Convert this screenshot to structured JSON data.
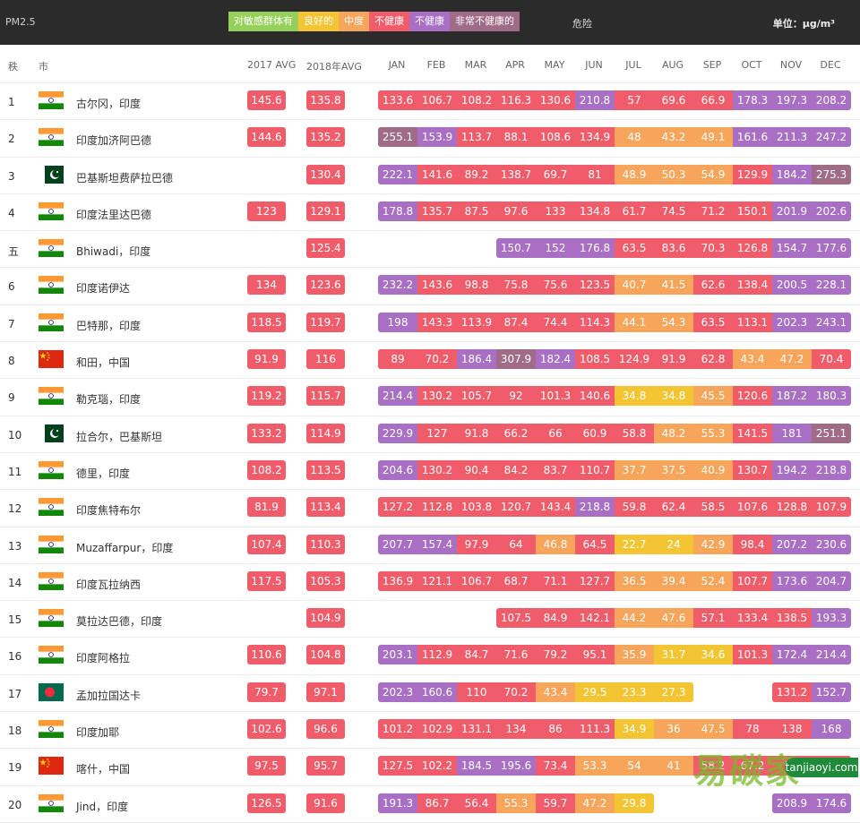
{
  "topbar": {
    "metric": "PM2.5",
    "legend": [
      {
        "label": "对敏感群体有",
        "color": "#95d05a"
      },
      {
        "label": "良好的",
        "color": "#f4c532"
      },
      {
        "label": "中度",
        "color": "#f7a55a"
      },
      {
        "label": "不健康",
        "color": "#f05c6a"
      },
      {
        "label": "不健康",
        "color": "#a86fc4"
      },
      {
        "label": "非常不健康的",
        "color": "#9f6b86"
      }
    ],
    "danger": "危险",
    "unit": "单位：μg/m³"
  },
  "header": {
    "rank": "秩",
    "city": "市",
    "avg2017": "2017 AVG",
    "avg2018": "2018年AVG",
    "months": [
      "JAN",
      "FEB",
      "MAR",
      "APR",
      "MAY",
      "JUN",
      "JUL",
      "AUG",
      "SEP",
      "OCT",
      "NOV",
      "DEC"
    ]
  },
  "colors": {
    "good": "#95d05a",
    "moderate": "#f4c532",
    "sensitive": "#f7a55a",
    "unhealthy": "#f05c6a",
    "very_unhealthy": "#a86fc4",
    "hazardous": "#9f6b86"
  },
  "rows": [
    {
      "rank": "1",
      "country": "IN",
      "city": "古尔冈，印度",
      "a17": "145.6",
      "a18": "135.8",
      "m": [
        "133.6",
        "106.7",
        "108.2",
        "116.3",
        "130.6",
        "210.8",
        "57",
        "69.6",
        "66.9",
        "178.3",
        "197.3",
        "208.2"
      ]
    },
    {
      "rank": "2",
      "country": "IN",
      "city": "印度加济阿巴德",
      "a17": "144.6",
      "a18": "135.2",
      "m": [
        "255.1",
        "153.9",
        "113.7",
        "88.1",
        "108.6",
        "134.9",
        "48",
        "43.2",
        "49.1",
        "161.6",
        "211.3",
        "247.2"
      ]
    },
    {
      "rank": "3",
      "country": "PK",
      "city": "巴基斯坦费萨拉巴德",
      "a17": "",
      "a18": "130.4",
      "m": [
        "222.1",
        "141.6",
        "89.2",
        "138.7",
        "69.7",
        "81",
        "48.9",
        "50.3",
        "54.9",
        "129.9",
        "184.2",
        "275.3"
      ]
    },
    {
      "rank": "4",
      "country": "IN",
      "city": "印度法里达巴德",
      "a17": "123",
      "a18": "129.1",
      "m": [
        "178.8",
        "135.7",
        "87.5",
        "97.6",
        "133",
        "134.8",
        "61.7",
        "74.5",
        "71.2",
        "150.1",
        "201.9",
        "202.6"
      ]
    },
    {
      "rank": "五",
      "country": "IN",
      "city": "Bhiwadi，印度",
      "a17": "",
      "a18": "125.4",
      "m": [
        "",
        "",
        "",
        "150.7",
        "152",
        "176.8",
        "63.5",
        "83.6",
        "70.3",
        "126.8",
        "154.7",
        "177.6"
      ]
    },
    {
      "rank": "6",
      "country": "IN",
      "city": "印度诺伊达",
      "a17": "134",
      "a18": "123.6",
      "m": [
        "232.2",
        "143.6",
        "98.8",
        "75.8",
        "75.6",
        "123.5",
        "40.7",
        "41.5",
        "62.6",
        "138.4",
        "200.5",
        "228.1"
      ]
    },
    {
      "rank": "7",
      "country": "IN",
      "city": "巴特那，印度",
      "a17": "118.5",
      "a18": "119.7",
      "m": [
        "198",
        "143.3",
        "113.9",
        "87.4",
        "74.4",
        "114.3",
        "44.1",
        "54.3",
        "63.5",
        "113.1",
        "202.3",
        "243.1"
      ]
    },
    {
      "rank": "8",
      "country": "CN",
      "city": "和田，中国",
      "a17": "91.9",
      "a18": "116",
      "m": [
        "89",
        "70.2",
        "186.4",
        "307.9",
        "182.4",
        "108.5",
        "124.9",
        "91.9",
        "62.8",
        "43.4",
        "47.2",
        "70.4"
      ]
    },
    {
      "rank": "9",
      "country": "IN",
      "city": "勒克瑙，印度",
      "a17": "119.2",
      "a18": "115.7",
      "m": [
        "214.4",
        "130.2",
        "105.7",
        "92",
        "101.3",
        "140.6",
        "34.8",
        "34.8",
        "45.5",
        "120.6",
        "187.2",
        "180.3"
      ]
    },
    {
      "rank": "10",
      "country": "PK",
      "city": "拉合尔，巴基斯坦",
      "a17": "133.2",
      "a18": "114.9",
      "m": [
        "229.9",
        "127",
        "91.8",
        "66.2",
        "66",
        "60.9",
        "58.8",
        "48.2",
        "55.3",
        "141.5",
        "181",
        "251.1"
      ]
    },
    {
      "rank": "11",
      "country": "IN",
      "city": "德里，印度",
      "a17": "108.2",
      "a18": "113.5",
      "m": [
        "204.6",
        "130.2",
        "90.4",
        "84.2",
        "83.7",
        "110.7",
        "37.7",
        "37.5",
        "40.9",
        "130.7",
        "194.2",
        "218.8"
      ]
    },
    {
      "rank": "12",
      "country": "IN",
      "city": "印度焦特布尔",
      "a17": "81.9",
      "a18": "113.4",
      "m": [
        "127.2",
        "112.8",
        "103.8",
        "120.7",
        "143.4",
        "218.8",
        "59.8",
        "62.4",
        "58.5",
        "107.6",
        "128.8",
        "107.9"
      ]
    },
    {
      "rank": "13",
      "country": "IN",
      "city": "Muzaffarpur，印度",
      "a17": "107.4",
      "a18": "110.3",
      "m": [
        "207.7",
        "157.4",
        "97.9",
        "64",
        "46.8",
        "64.5",
        "22.7",
        "24",
        "42.9",
        "98.4",
        "207.2",
        "230.6"
      ]
    },
    {
      "rank": "14",
      "country": "IN",
      "city": "印度瓦拉纳西",
      "a17": "117.5",
      "a18": "105.3",
      "m": [
        "136.9",
        "121.1",
        "106.7",
        "68.7",
        "71.1",
        "127.7",
        "36.5",
        "39.4",
        "52.4",
        "107.7",
        "173.6",
        "204.7"
      ]
    },
    {
      "rank": "15",
      "country": "IN",
      "city": "莫拉达巴德，印度",
      "a17": "",
      "a18": "104.9",
      "m": [
        "",
        "",
        "",
        "107.5",
        "84.9",
        "142.1",
        "44.2",
        "47.6",
        "57.1",
        "133.4",
        "138.5",
        "193.3"
      ]
    },
    {
      "rank": "16",
      "country": "IN",
      "city": "印度阿格拉",
      "a17": "110.6",
      "a18": "104.8",
      "m": [
        "203.1",
        "112.9",
        "84.7",
        "71.6",
        "79.2",
        "95.1",
        "35.9",
        "31.7",
        "34.6",
        "101.3",
        "172.4",
        "214.4"
      ]
    },
    {
      "rank": "17",
      "country": "BD",
      "city": "孟加拉国达卡",
      "a17": "79.7",
      "a18": "97.1",
      "m": [
        "202.3",
        "160.6",
        "110",
        "70.2",
        "43.4",
        "29.5",
        "23.3",
        "27.3",
        "",
        "",
        "131.2",
        "152.7"
      ]
    },
    {
      "rank": "18",
      "country": "IN",
      "city": "印度加耶",
      "a17": "102.6",
      "a18": "96.6",
      "m": [
        "101.2",
        "102.9",
        "131.1",
        "134",
        "86",
        "111.3",
        "34.9",
        "36",
        "47.5",
        "78",
        "138",
        "168"
      ]
    },
    {
      "rank": "19",
      "country": "CN",
      "city": "喀什，中国",
      "a17": "97.5",
      "a18": "95.7",
      "m": [
        "127.5",
        "102.2",
        "184.5",
        "195.6",
        "73.4",
        "53.3",
        "54",
        "41",
        "58.2",
        "67.2",
        "78",
        "111.6"
      ]
    },
    {
      "rank": "20",
      "country": "IN",
      "city": "Jind，印度",
      "a17": "126.5",
      "a18": "91.6",
      "m": [
        "191.3",
        "86.7",
        "56.4",
        "55.3",
        "59.7",
        "47.2",
        "29.8",
        "",
        "",
        "",
        "208.9",
        "174.6"
      ]
    }
  ],
  "watermark": {
    "logo": "易碳家",
    "site": "tanjiaoyi",
    "site2": ".com"
  }
}
